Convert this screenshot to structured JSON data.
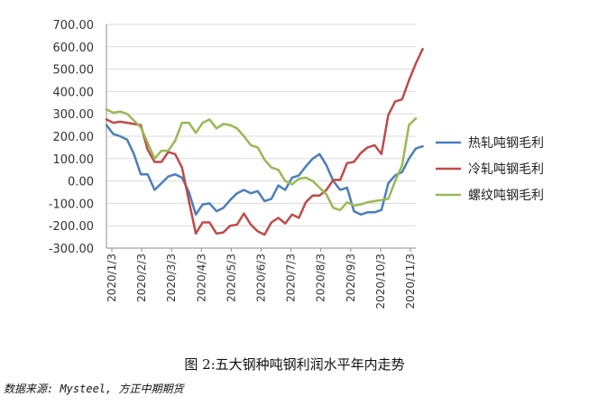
{
  "caption": "图 2:五大钢种吨钢利润水平年内走势",
  "source": "数据来源: Mysteel, 方正中期期货",
  "chart_data": {
    "type": "line",
    "title": "",
    "xlabel": "",
    "ylabel": "",
    "ylim": [
      -300,
      700
    ],
    "y_ticks": [
      "700.00",
      "600.00",
      "500.00",
      "400.00",
      "300.00",
      "200.00",
      "100.00",
      "0.00",
      "-100.00",
      "-200.00",
      "-300.00"
    ],
    "x_tick_labels": [
      "2020/1/3",
      "2020/2/3",
      "2020/3/3",
      "2020/4/3",
      "2020/5/3",
      "2020/6/3",
      "2020/7/3",
      "2020/8/3",
      "2020/9/3",
      "2020/10/3",
      "2020/11/3"
    ],
    "x_range": [
      0,
      45
    ],
    "grid": "horizontal",
    "legend_position": "right",
    "series": [
      {
        "name": "热轧吨钢毛利",
        "color": "#4A7EBB",
        "values": [
          250,
          210,
          200,
          185,
          120,
          30,
          30,
          -40,
          -10,
          20,
          30,
          15,
          -50,
          -150,
          -105,
          -100,
          -135,
          -120,
          -85,
          -55,
          -40,
          -55,
          -45,
          -90,
          -80,
          -20,
          -40,
          15,
          25,
          65,
          100,
          120,
          70,
          0,
          -40,
          -30,
          -135,
          -150,
          -140,
          -140,
          -130,
          -10,
          25,
          40,
          100,
          145,
          155
        ]
      },
      {
        "name": "冷轧吨钢毛利",
        "color": "#BE4B48",
        "values": [
          275,
          260,
          265,
          260,
          255,
          250,
          140,
          85,
          85,
          130,
          120,
          60,
          -90,
          -235,
          -185,
          -185,
          -235,
          -230,
          -200,
          -195,
          -145,
          -195,
          -225,
          -240,
          -185,
          -165,
          -190,
          -150,
          -165,
          -95,
          -65,
          -65,
          -40,
          5,
          5,
          80,
          85,
          125,
          150,
          160,
          120,
          295,
          355,
          365,
          450,
          525,
          590
        ]
      },
      {
        "name": "螺纹吨钢毛利",
        "color": "#98B954",
        "values": [
          320,
          305,
          310,
          300,
          270,
          240,
          170,
          100,
          135,
          135,
          180,
          260,
          260,
          215,
          260,
          275,
          235,
          255,
          250,
          235,
          200,
          160,
          150,
          95,
          60,
          50,
          0,
          -15,
          10,
          15,
          0,
          -30,
          -60,
          -120,
          -130,
          -95,
          -110,
          -105,
          -95,
          -90,
          -85,
          -80,
          0,
          70,
          250,
          280
        ]
      }
    ]
  }
}
